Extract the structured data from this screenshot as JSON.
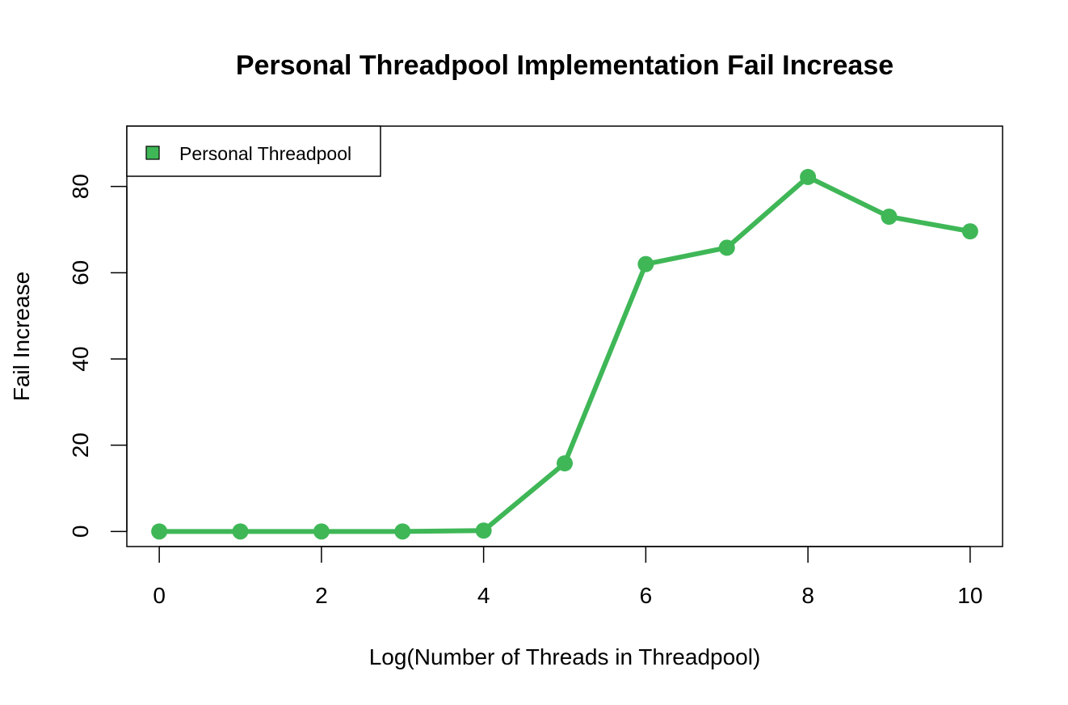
{
  "chart_data": {
    "type": "line",
    "title": "Personal Threadpool Implementation Fail Increase",
    "xlabel": "Log(Number of Threads in Threadpool)",
    "ylabel": "Fail Increase",
    "xlim": [
      -0.4,
      10.4
    ],
    "ylim": [
      -3.5,
      94
    ],
    "xticks": [
      0,
      2,
      4,
      6,
      8,
      10
    ],
    "yticks": [
      0,
      20,
      40,
      60,
      80
    ],
    "grid": false,
    "legend_position": "top-left",
    "series": [
      {
        "name": "Personal Threadpool",
        "color": "#3fb757",
        "x": [
          0,
          1,
          2,
          3,
          4,
          5,
          6,
          7,
          8,
          9,
          10
        ],
        "y": [
          0,
          0,
          0,
          0,
          0.2,
          15.8,
          62,
          65.8,
          82.2,
          73,
          69.6
        ]
      }
    ]
  }
}
